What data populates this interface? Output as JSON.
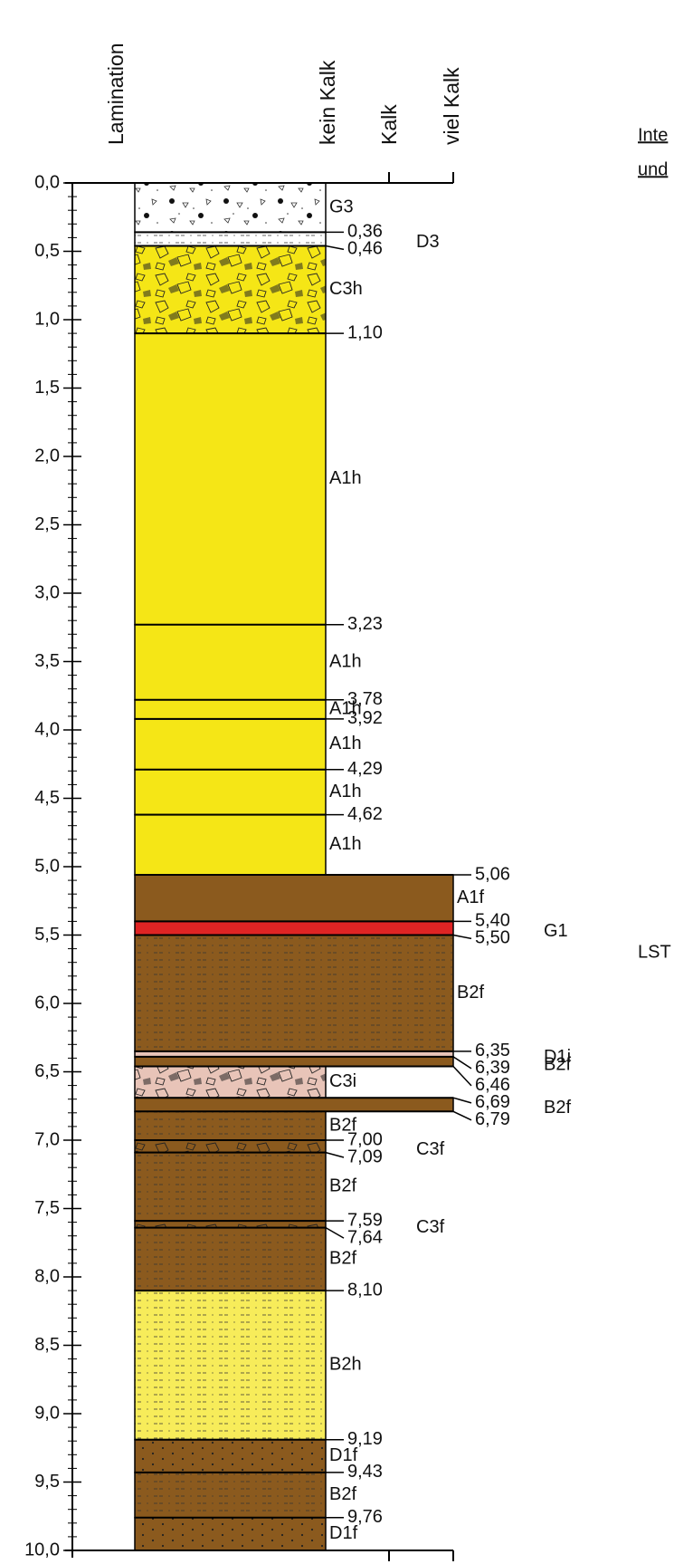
{
  "headers": [
    "Lamination",
    "kein Kalk",
    "Kalk",
    "viel Kalk"
  ],
  "side_texts": [
    "Inte",
    "und",
    "LST"
  ],
  "ylim": [
    0,
    10
  ],
  "yticks": [
    {
      "value": 0,
      "label": "0,0"
    },
    {
      "value": 0.5,
      "label": "0,5"
    },
    {
      "value": 1,
      "label": "1,0"
    },
    {
      "value": 1.5,
      "label": "1,5"
    },
    {
      "value": 2,
      "label": "2,0"
    },
    {
      "value": 2.5,
      "label": "2,5"
    },
    {
      "value": 3,
      "label": "3,0"
    },
    {
      "value": 3.5,
      "label": "3,5"
    },
    {
      "value": 4,
      "label": "4,0"
    },
    {
      "value": 4.5,
      "label": "4,5"
    },
    {
      "value": 5,
      "label": "5,0"
    },
    {
      "value": 5.5,
      "label": "5,5"
    },
    {
      "value": 6,
      "label": "6,0"
    },
    {
      "value": 6.5,
      "label": "6,5"
    },
    {
      "value": 7,
      "label": "7,0"
    },
    {
      "value": 7.5,
      "label": "7,5"
    },
    {
      "value": 8,
      "label": "8,0"
    },
    {
      "value": 8.5,
      "label": "8,5"
    },
    {
      "value": 9,
      "label": "9,0"
    },
    {
      "value": 9.5,
      "label": "9,5"
    },
    {
      "value": 10,
      "label": "10,0"
    }
  ],
  "layers": [
    {
      "top": 0,
      "bottom": 0.36,
      "code": "G3",
      "level": 0,
      "color": "#ffffff",
      "pattern": "gravel"
    },
    {
      "top": 0.36,
      "bottom": 0.46,
      "code": "D3",
      "level": 0,
      "color": "#ffffff",
      "pattern": "dash"
    },
    {
      "top": 0.46,
      "bottom": 1.1,
      "code": "C3h",
      "level": 0,
      "color": "#f5e616",
      "pattern": "frag"
    },
    {
      "top": 1.1,
      "bottom": 3.23,
      "code": "A1h",
      "level": 0,
      "color": "#f5e616",
      "pattern": ""
    },
    {
      "top": 3.23,
      "bottom": 3.78,
      "code": "A1h",
      "level": 0,
      "color": "#f5e616",
      "pattern": ""
    },
    {
      "top": 3.78,
      "bottom": 3.92,
      "code": "A1h",
      "level": 0,
      "color": "#f5e616",
      "pattern": ""
    },
    {
      "top": 3.92,
      "bottom": 4.29,
      "code": "A1h",
      "level": 0,
      "color": "#f5e616",
      "pattern": ""
    },
    {
      "top": 4.29,
      "bottom": 4.62,
      "code": "A1h",
      "level": 0,
      "color": "#f5e616",
      "pattern": ""
    },
    {
      "top": 4.62,
      "bottom": 5.06,
      "code": "A1h",
      "level": 0,
      "color": "#f5e616",
      "pattern": ""
    },
    {
      "top": 5.06,
      "bottom": 5.4,
      "code": "A1f",
      "level": 2,
      "color": "#8b5a1e",
      "pattern": ""
    },
    {
      "top": 5.4,
      "bottom": 5.5,
      "code": "G1",
      "level": 2,
      "color": "#e02424",
      "pattern": ""
    },
    {
      "top": 5.5,
      "bottom": 6.35,
      "code": "B2f",
      "level": 2,
      "color": "#8b5a1e",
      "pattern": "dash"
    },
    {
      "top": 6.35,
      "bottom": 6.39,
      "code": "D1i",
      "level": 2,
      "color": "#e8c4b8",
      "pattern": ""
    },
    {
      "top": 6.39,
      "bottom": 6.46,
      "code": "B2f",
      "level": 2,
      "color": "#8b5a1e",
      "pattern": ""
    },
    {
      "top": 6.46,
      "bottom": 6.69,
      "code": "C3i",
      "level": 0,
      "color": "#e8c4b8",
      "pattern": "frag"
    },
    {
      "top": 6.69,
      "bottom": 6.79,
      "code": "B2f",
      "level": 2,
      "color": "#8b5a1e",
      "pattern": ""
    },
    {
      "top": 6.79,
      "bottom": 7.0,
      "code": "B2f",
      "level": 0,
      "color": "#8b5a1e",
      "pattern": "dash"
    },
    {
      "top": 7.0,
      "bottom": 7.09,
      "code": "C3f",
      "level": 0,
      "color": "#8b5a1e",
      "pattern": "frag"
    },
    {
      "top": 7.09,
      "bottom": 7.59,
      "code": "B2f",
      "level": 0,
      "color": "#8b5a1e",
      "pattern": "dash"
    },
    {
      "top": 7.59,
      "bottom": 7.64,
      "code": "C3f",
      "level": 0,
      "color": "#8b5a1e",
      "pattern": "frag"
    },
    {
      "top": 7.64,
      "bottom": 8.1,
      "code": "B2f",
      "level": 0,
      "color": "#8b5a1e",
      "pattern": "dash"
    },
    {
      "top": 8.1,
      "bottom": 9.19,
      "code": "B2h",
      "level": 0,
      "color": "#f7ec5a",
      "pattern": "dash"
    },
    {
      "top": 9.19,
      "bottom": 9.43,
      "code": "D1f",
      "level": 0,
      "color": "#8b5a1e",
      "pattern": "dot"
    },
    {
      "top": 9.43,
      "bottom": 9.76,
      "code": "B2f",
      "level": 0,
      "color": "#8b5a1e",
      "pattern": "dash"
    },
    {
      "top": 9.76,
      "bottom": 10,
      "code": "D1f",
      "level": 0,
      "color": "#8b5a1e",
      "pattern": "dot"
    }
  ],
  "boundaries": [
    {
      "value": 0.36,
      "label": "0,36"
    },
    {
      "value": 0.46,
      "label": "0,46"
    },
    {
      "value": 1.1,
      "label": "1,10"
    },
    {
      "value": 3.23,
      "label": "3,23"
    },
    {
      "value": 3.78,
      "label": "3,78"
    },
    {
      "value": 3.92,
      "label": "3,92"
    },
    {
      "value": 4.29,
      "label": "4,29"
    },
    {
      "value": 4.62,
      "label": "4,62"
    },
    {
      "value": 5.06,
      "label": "5,06"
    },
    {
      "value": 5.4,
      "label": "5,40"
    },
    {
      "value": 5.5,
      "label": "5,50"
    },
    {
      "value": 6.35,
      "label": "6,35"
    },
    {
      "value": 6.39,
      "label": "6,39"
    },
    {
      "value": 6.46,
      "label": "6,46"
    },
    {
      "value": 6.69,
      "label": "6,69"
    },
    {
      "value": 6.79,
      "label": "6,79"
    },
    {
      "value": 7.0,
      "label": "7,00"
    },
    {
      "value": 7.09,
      "label": "7,09"
    },
    {
      "value": 7.59,
      "label": "7,59"
    },
    {
      "value": 7.64,
      "label": "7,64"
    },
    {
      "value": 8.1,
      "label": "8,10"
    },
    {
      "value": 9.19,
      "label": "9,19"
    },
    {
      "value": 9.43,
      "label": "9,43"
    },
    {
      "value": 9.76,
      "label": "9,76"
    }
  ]
}
